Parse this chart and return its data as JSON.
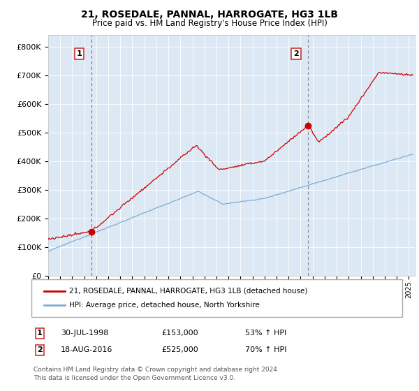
{
  "title": "21, ROSEDALE, PANNAL, HARROGATE, HG3 1LB",
  "subtitle": "Price paid vs. HM Land Registry's House Price Index (HPI)",
  "plot_bg_color": "#dce9f5",
  "red_line_color": "#cc0000",
  "blue_line_color": "#7dadd4",
  "sale1_date_x": 1998.58,
  "sale1_price": 153000,
  "sale1_label": "30-JUL-1998",
  "sale1_amount": "£153,000",
  "sale1_pct": "53% ↑ HPI",
  "sale2_date_x": 2016.63,
  "sale2_price": 525000,
  "sale2_label": "18-AUG-2016",
  "sale2_amount": "£525,000",
  "sale2_pct": "70% ↑ HPI",
  "legend_line1": "21, ROSEDALE, PANNAL, HARROGATE, HG3 1LB (detached house)",
  "legend_line2": "HPI: Average price, detached house, North Yorkshire",
  "footnote1": "Contains HM Land Registry data © Crown copyright and database right 2024.",
  "footnote2": "This data is licensed under the Open Government Licence v3.0.",
  "xmin": 1995.0,
  "xmax": 2025.5,
  "ymin": 0,
  "ymax": 840000,
  "ytick_interval": 100000,
  "box_color": "#cc3333",
  "vline1_color": "#dd4444",
  "vline2_color": "#888888"
}
